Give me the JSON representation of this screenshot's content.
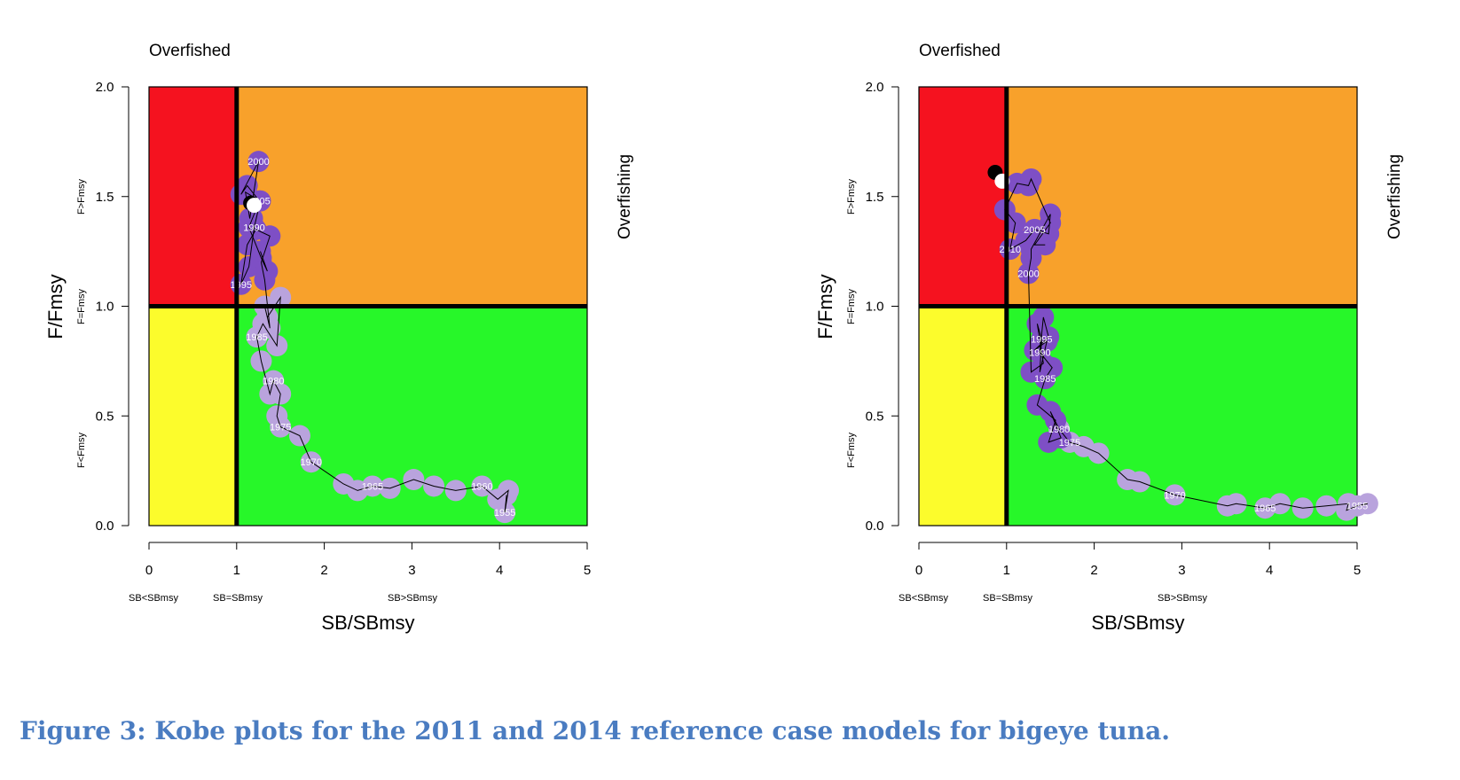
{
  "caption": "Figure 3: Kobe plots for the 2011 and 2014 reference case models for bigeye tuna.",
  "colors": {
    "overfished_overfishing": "#f5121f",
    "overfishing_only": "#f8a12b",
    "overfished_only": "#fcfc2c",
    "healthy": "#27f729",
    "early_points": "#b9a3dd",
    "recent_points": "#7e4fc5",
    "reference_lines": "#000000",
    "year_label": "#ffffff",
    "caption": "#4a7cc1"
  },
  "chart_data": [
    {
      "type": "scatter",
      "title": "Overfished",
      "right_label": "Overfishing",
      "xlabel": "SB/SBmsy",
      "ylabel": "F/Fmsy",
      "xlim": [
        0,
        5
      ],
      "ylim": [
        0,
        2
      ],
      "xticks": [
        "0",
        "1",
        "2",
        "3",
        "4",
        "5"
      ],
      "yticks": [
        "0.0",
        "0.5",
        "1.0",
        "1.5",
        "2.0"
      ],
      "x_zone_labels": [
        "SB<SBmsy",
        "SB=SBmsy",
        "SB>SBmsy"
      ],
      "y_zone_labels": [
        "F<Fmsy",
        "F=Fmsy",
        "F>Fmsy"
      ],
      "reference_x": 1,
      "reference_y": 1,
      "grid": false,
      "series": [
        {
          "x": [
            4.08,
            4.06,
            4.1,
            3.98,
            3.8,
            3.5,
            3.25,
            3.02,
            2.75,
            2.55,
            2.38,
            2.22,
            1.85,
            1.72,
            1.5,
            1.46,
            1.5,
            1.42,
            1.38,
            1.28,
            1.23,
            1.3,
            1.46,
            1.5,
            1.35,
            1.32,
            1.38
          ],
          "y": [
            0.14,
            0.06,
            0.16,
            0.12,
            0.18,
            0.16,
            0.18,
            0.21,
            0.17,
            0.18,
            0.16,
            0.19,
            0.29,
            0.41,
            0.45,
            0.5,
            0.6,
            0.66,
            0.6,
            0.75,
            0.86,
            0.92,
            0.82,
            1.04,
            0.95,
            1.0,
            0.9
          ],
          "labels": [
            "",
            "1955",
            "",
            "",
            "1960",
            "",
            "",
            "",
            "",
            "1965",
            "",
            "",
            "1970",
            "",
            "1975",
            "",
            "",
            "1980",
            "",
            "",
            "1985",
            "",
            "",
            "",
            "",
            "",
            ""
          ]
        },
        {
          "x": [
            1.32,
            1.28,
            1.38,
            1.22,
            1.12,
            1.05,
            1.14,
            1.2,
            1.27,
            1.1,
            1.15,
            1.25,
            1.05,
            1.12,
            1.26,
            1.18,
            1.14,
            1.28,
            1.35,
            1.27
          ],
          "y": [
            1.12,
            1.2,
            1.32,
            1.35,
            1.28,
            1.1,
            1.18,
            1.36,
            1.48,
            1.52,
            1.4,
            1.66,
            1.51,
            1.55,
            1.48,
            1.4,
            1.36,
            1.22,
            1.16,
            1.25
          ],
          "labels": [
            "",
            "",
            "",
            "",
            "",
            "1995",
            "",
            "1990",
            "",
            "",
            "",
            "2000",
            "",
            "",
            "2005",
            "",
            "",
            "",
            "",
            ""
          ]
        }
      ],
      "terminal_points": [
        {
          "x": 1.16,
          "y": 1.47,
          "color": "#000000"
        },
        {
          "x": 1.2,
          "y": 1.46,
          "color": "#ffffff"
        }
      ]
    },
    {
      "type": "scatter",
      "title": "Overfished",
      "right_label": "Overfishing",
      "xlabel": "SB/SBmsy",
      "ylabel": "F/Fmsy",
      "xlim": [
        0,
        5
      ],
      "ylim": [
        0,
        2
      ],
      "xticks": [
        "0",
        "1",
        "2",
        "3",
        "4",
        "5"
      ],
      "yticks": [
        "0.0",
        "0.5",
        "1.0",
        "1.5",
        "2.0"
      ],
      "x_zone_labels": [
        "SB<SBmsy",
        "SB=SBmsy",
        "SB>SBmsy"
      ],
      "y_zone_labels": [
        "F<Fmsy",
        "F=Fmsy",
        "F>Fmsy"
      ],
      "reference_x": 1,
      "reference_y": 1,
      "grid": false,
      "series": [
        {
          "x": [
            5.12,
            5.0,
            4.88,
            4.9,
            4.65,
            4.38,
            4.12,
            3.95,
            3.62,
            3.52,
            2.92,
            2.52,
            2.38,
            2.05,
            1.88,
            1.72,
            1.6
          ],
          "y": [
            0.1,
            0.09,
            0.07,
            0.1,
            0.09,
            0.08,
            0.1,
            0.08,
            0.1,
            0.09,
            0.14,
            0.2,
            0.21,
            0.33,
            0.36,
            0.38,
            0.44
          ],
          "labels": [
            "",
            "1955",
            "",
            "",
            "",
            "",
            "",
            "1965",
            "",
            "",
            "1970",
            "",
            "",
            "",
            "",
            "1975",
            "1980"
          ]
        },
        {
          "x": [
            1.5,
            1.62,
            1.48,
            1.56,
            1.35,
            1.44,
            1.52,
            1.38,
            1.42,
            1.48,
            1.32,
            1.46,
            1.38,
            1.4,
            1.35,
            1.42,
            1.28
          ],
          "y": [
            0.52,
            0.4,
            0.38,
            0.48,
            0.55,
            0.67,
            0.72,
            0.79,
            0.95,
            0.86,
            0.8,
            0.84,
            0.7,
            0.85,
            0.92,
            0.74,
            0.7
          ],
          "labels": [
            "",
            "",
            "",
            "",
            "",
            "1985",
            "",
            "1990",
            "",
            "",
            "",
            "",
            "",
            "1995",
            "",
            "",
            ""
          ]
        },
        {
          "x": [
            1.25,
            1.28,
            1.28,
            1.5,
            1.48,
            1.32,
            1.22,
            1.04,
            1.1,
            0.98,
            1.12,
            1.25,
            1.28,
            1.5,
            1.32,
            1.44
          ],
          "y": [
            1.15,
            1.22,
            1.26,
            1.42,
            1.33,
            1.35,
            1.3,
            1.26,
            1.38,
            1.44,
            1.56,
            1.55,
            1.58,
            1.38,
            1.28,
            1.28
          ],
          "labels": [
            "2000",
            "",
            "",
            "",
            "",
            "2005",
            "",
            "2010",
            "",
            "",
            "",
            "",
            "",
            "",
            "",
            ""
          ]
        }
      ],
      "terminal_points": [
        {
          "x": 0.87,
          "y": 1.61,
          "color": "#000000"
        },
        {
          "x": 0.95,
          "y": 1.57,
          "color": "#ffffff"
        }
      ]
    }
  ]
}
